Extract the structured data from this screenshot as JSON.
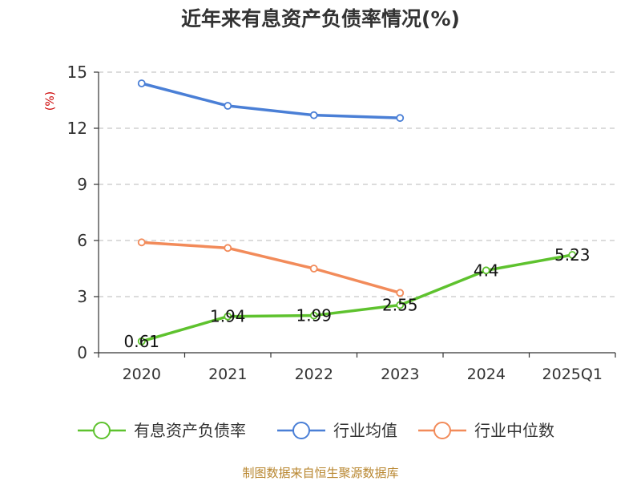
{
  "chart_data": {
    "type": "line",
    "title": "近年来有息资产负债率情况(%)",
    "ylabel": "(%)",
    "ylim": [
      0,
      15
    ],
    "yticks": [
      "0",
      "3",
      "6",
      "9",
      "12",
      "15"
    ],
    "categories": [
      "2020",
      "2021",
      "2022",
      "2023",
      "2024",
      "2025Q1"
    ],
    "grid": true,
    "legend_position": "bottom",
    "series": [
      {
        "name": "有息资产负债率",
        "color": "#5ec22e",
        "values": [
          0.61,
          1.94,
          1.99,
          2.55,
          4.4,
          5.23
        ],
        "labels": [
          "0.61",
          "1.94",
          "1.99",
          "2.55",
          "4.4",
          "5.23"
        ]
      },
      {
        "name": "行业均值",
        "color": "#4a7fd6",
        "values": [
          14.4,
          13.2,
          12.7,
          12.55,
          null,
          null
        ]
      },
      {
        "name": "行业中位数",
        "color": "#f28b5a",
        "values": [
          5.9,
          5.6,
          4.5,
          3.2,
          null,
          null
        ]
      }
    ],
    "source": "制图数据来自恒生聚源数据库"
  }
}
